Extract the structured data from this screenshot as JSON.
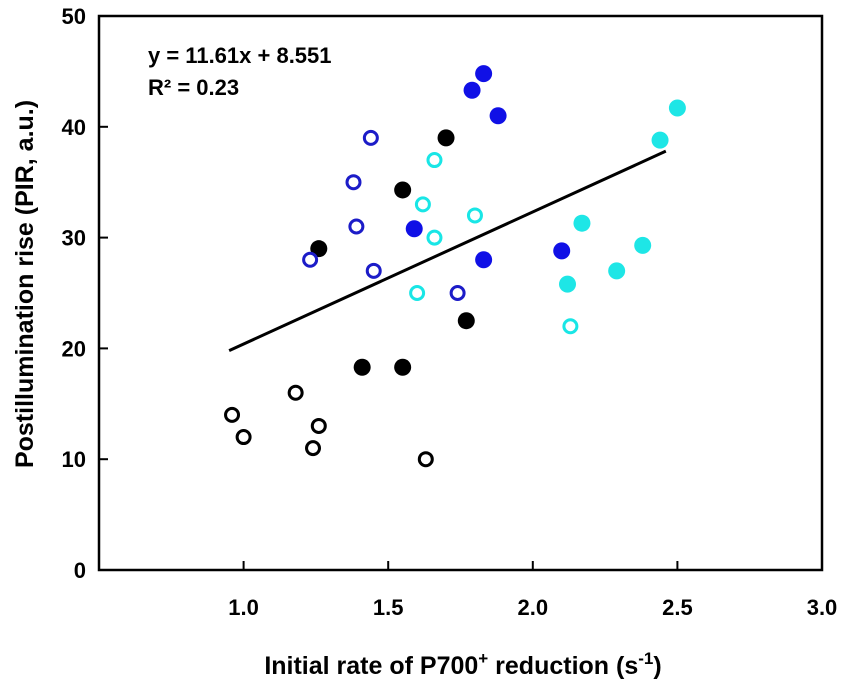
{
  "chart_data": {
    "type": "scatter",
    "title": "",
    "xlabel": {
      "prefix": "Initial rate of P700",
      "sup": "+",
      "middle": " reduction (s",
      "sup2": "-1",
      "suffix": ")"
    },
    "ylabel": "Postillumination rise (PIR, a.u.)",
    "xlim": [
      0.5,
      3.0
    ],
    "ylim": [
      0,
      50
    ],
    "xticks": [
      1.0,
      1.5,
      2.0,
      2.5,
      3.0
    ],
    "xtick_labels": [
      "1.0",
      "1.5",
      "2.0",
      "2.5",
      "3.0"
    ],
    "yticks": [
      0,
      10,
      20,
      30,
      40,
      50
    ],
    "ytick_labels": [
      "0",
      "10",
      "20",
      "30",
      "40",
      "50"
    ],
    "grid": false,
    "annotation": {
      "equation": "y = 11.61x + 8.551",
      "r2": "R² = 0.23"
    },
    "fit_line": {
      "x": [
        0.95,
        2.46
      ],
      "y": [
        19.8,
        37.8
      ]
    },
    "series": [
      {
        "name": "black-open",
        "color": "#000000",
        "filled": false,
        "x": [
          0.96,
          1.0,
          1.18,
          1.24,
          1.26,
          1.63
        ],
        "y": [
          14.0,
          12.0,
          16.0,
          11.0,
          13.0,
          10.0
        ]
      },
      {
        "name": "black-filled",
        "color": "#000000",
        "filled": true,
        "x": [
          1.26,
          1.41,
          1.55,
          1.55,
          1.7,
          1.77
        ],
        "y": [
          29.0,
          18.3,
          18.3,
          34.3,
          39.0,
          22.5
        ]
      },
      {
        "name": "blue-open",
        "color": "#1c1cc8",
        "filled": false,
        "x": [
          1.23,
          1.38,
          1.39,
          1.44,
          1.45,
          1.74
        ],
        "y": [
          28.0,
          35.0,
          31.0,
          39.0,
          27.0,
          25.0
        ]
      },
      {
        "name": "blue-filled",
        "color": "#1010e6",
        "filled": true,
        "x": [
          1.59,
          1.79,
          1.83,
          1.83,
          1.88,
          2.1
        ],
        "y": [
          30.8,
          43.3,
          44.8,
          28.0,
          41.0,
          28.8
        ]
      },
      {
        "name": "cyan-open",
        "color": "#19e6e6",
        "filled": false,
        "x": [
          1.6,
          1.62,
          1.66,
          1.66,
          1.8,
          2.13
        ],
        "y": [
          25.0,
          33.0,
          30.0,
          37.0,
          32.0,
          22.0
        ]
      },
      {
        "name": "cyan-filled",
        "color": "#1ee6e6",
        "filled": true,
        "x": [
          2.12,
          2.17,
          2.29,
          2.38,
          2.44,
          2.5
        ],
        "y": [
          25.8,
          31.3,
          27.0,
          29.3,
          38.8,
          41.7
        ]
      }
    ]
  }
}
